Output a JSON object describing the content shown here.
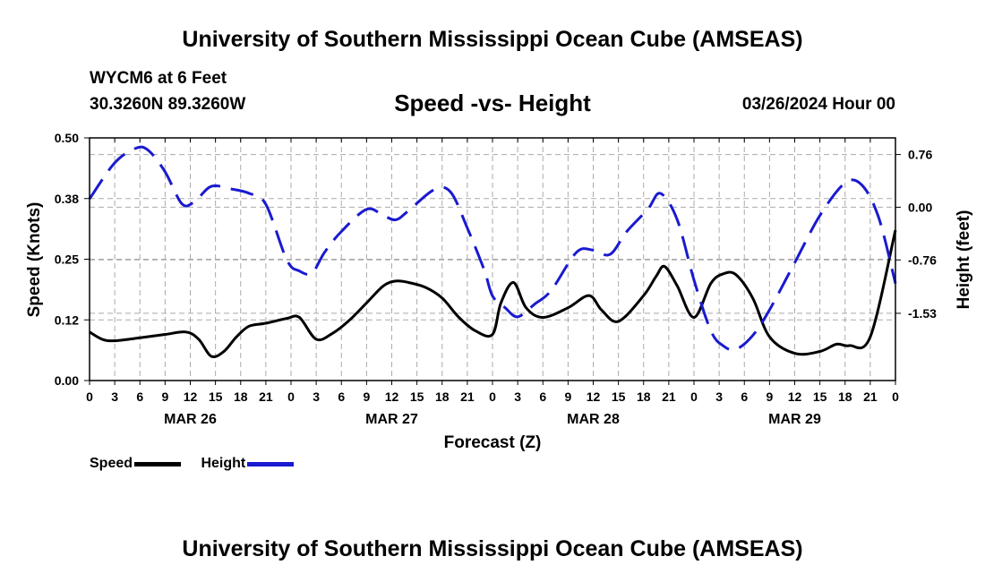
{
  "header": {
    "title": "University of Southern Mississippi Ocean Cube (AMSEAS)",
    "station": "WYCM6 at 6 Feet",
    "coords": "30.3260N  89.3260W",
    "subtitle": "Speed -vs- Height",
    "datetime": "03/26/2024 Hour 00"
  },
  "footer": {
    "title": "University of Southern Mississippi Ocean Cube (AMSEAS)"
  },
  "legend": {
    "speed_label": "Speed",
    "height_label": "Height"
  },
  "colors": {
    "speed": "#000000",
    "height": "#1a1ad0",
    "grid": "#aaaaaa"
  },
  "chart_data": {
    "type": "line",
    "title": "Speed -vs- Height",
    "xlabel": "Forecast (Z)",
    "ylabel": "Speed (Knots)",
    "y2label": "Height (feet)",
    "xlim": [
      0,
      96
    ],
    "ylim": [
      0,
      0.5
    ],
    "y2lim": [
      -2.5,
      1.0
    ],
    "grid": true,
    "legend_position": "bottom-left",
    "yticks": [
      {
        "value": 0,
        "label": "0.00"
      },
      {
        "value": 0.125,
        "label": "0.12"
      },
      {
        "value": 0.25,
        "label": "0.25"
      },
      {
        "value": 0.375,
        "label": "0.38"
      },
      {
        "value": 0.5,
        "label": "0.50"
      }
    ],
    "y2ticks": [
      {
        "value": 0.76,
        "label": "0.76"
      },
      {
        "value": 0.0,
        "label": "0.00"
      },
      {
        "value": -0.76,
        "label": "-0.76"
      },
      {
        "value": -1.53,
        "label": "-1.53"
      }
    ],
    "xticks": [
      {
        "hour": 0,
        "label": "0"
      },
      {
        "hour": 3,
        "label": "3"
      },
      {
        "hour": 6,
        "label": "6"
      },
      {
        "hour": 9,
        "label": "9"
      },
      {
        "hour": 12,
        "label": "12"
      },
      {
        "hour": 15,
        "label": "15"
      },
      {
        "hour": 18,
        "label": "18"
      },
      {
        "hour": 21,
        "label": "21"
      },
      {
        "hour": 24,
        "label": "0"
      },
      {
        "hour": 27,
        "label": "3"
      },
      {
        "hour": 30,
        "label": "6"
      },
      {
        "hour": 33,
        "label": "9"
      },
      {
        "hour": 36,
        "label": "12"
      },
      {
        "hour": 39,
        "label": "15"
      },
      {
        "hour": 42,
        "label": "18"
      },
      {
        "hour": 45,
        "label": "21"
      },
      {
        "hour": 48,
        "label": "0"
      },
      {
        "hour": 51,
        "label": "3"
      },
      {
        "hour": 54,
        "label": "6"
      },
      {
        "hour": 57,
        "label": "9"
      },
      {
        "hour": 60,
        "label": "12"
      },
      {
        "hour": 63,
        "label": "15"
      },
      {
        "hour": 66,
        "label": "18"
      },
      {
        "hour": 69,
        "label": "21"
      },
      {
        "hour": 72,
        "label": "0"
      },
      {
        "hour": 75,
        "label": "3"
      },
      {
        "hour": 78,
        "label": "6"
      },
      {
        "hour": 81,
        "label": "9"
      },
      {
        "hour": 84,
        "label": "12"
      },
      {
        "hour": 87,
        "label": "15"
      },
      {
        "hour": 90,
        "label": "18"
      },
      {
        "hour": 93,
        "label": "21"
      },
      {
        "hour": 96,
        "label": "0"
      }
    ],
    "day_labels": [
      {
        "hour": 12,
        "label": "MAR 26"
      },
      {
        "hour": 36,
        "label": "MAR 27"
      },
      {
        "hour": 60,
        "label": "MAR 28"
      },
      {
        "hour": 84,
        "label": "MAR 29"
      }
    ],
    "series": [
      {
        "name": "Speed",
        "axis": "left",
        "style": "solid",
        "x": [
          0,
          1.5,
          3,
          6,
          9,
          11.5,
          13,
          14.5,
          16,
          17.5,
          19,
          21,
          23.5,
          25,
          27,
          29,
          31,
          33,
          35,
          36.5,
          38,
          40,
          42,
          44,
          46,
          48,
          49,
          50.5,
          52,
          54,
          57,
          59.5,
          61,
          63,
          66,
          67.5,
          68.5,
          70,
          72,
          74,
          75.5,
          77,
          79,
          81,
          84,
          87,
          89,
          90.5,
          93,
          96
        ],
        "values": [
          0.1,
          0.085,
          0.082,
          0.088,
          0.095,
          0.1,
          0.085,
          0.05,
          0.06,
          0.09,
          0.112,
          0.118,
          0.128,
          0.13,
          0.085,
          0.098,
          0.125,
          0.16,
          0.195,
          0.205,
          0.202,
          0.192,
          0.17,
          0.13,
          0.102,
          0.095,
          0.16,
          0.202,
          0.15,
          0.13,
          0.15,
          0.175,
          0.145,
          0.122,
          0.175,
          0.215,
          0.235,
          0.195,
          0.13,
          0.2,
          0.22,
          0.218,
          0.17,
          0.09,
          0.056,
          0.06,
          0.075,
          0.072,
          0.09,
          0.31
        ]
      },
      {
        "name": "Height",
        "axis": "right",
        "style": "dashed",
        "x": [
          0,
          3,
          5.5,
          7,
          9,
          11,
          12.5,
          14.5,
          17,
          19,
          21,
          23.5,
          25,
          26.5,
          28,
          30,
          33,
          35,
          36.5,
          38,
          41,
          43,
          45,
          47,
          48,
          49.5,
          51,
          53,
          55,
          58,
          60,
          62,
          64,
          66.5,
          68,
          70,
          72,
          74,
          75.5,
          77,
          79,
          81,
          84,
          87,
          90,
          92,
          94,
          96
        ],
        "values": [
          0.12,
          0.64,
          0.85,
          0.82,
          0.51,
          0.05,
          0.08,
          0.3,
          0.26,
          0.2,
          0.04,
          -0.76,
          -0.92,
          -0.95,
          -0.65,
          -0.35,
          -0.03,
          -0.12,
          -0.18,
          -0.05,
          0.25,
          0.22,
          -0.3,
          -0.9,
          -1.28,
          -1.45,
          -1.58,
          -1.4,
          -1.2,
          -0.65,
          -0.62,
          -0.68,
          -0.35,
          -0.03,
          0.2,
          -0.18,
          -1.05,
          -1.78,
          -2.0,
          -2.05,
          -1.85,
          -1.48,
          -0.8,
          -0.12,
          0.35,
          0.32,
          -0.15,
          -1.1
        ]
      }
    ]
  }
}
